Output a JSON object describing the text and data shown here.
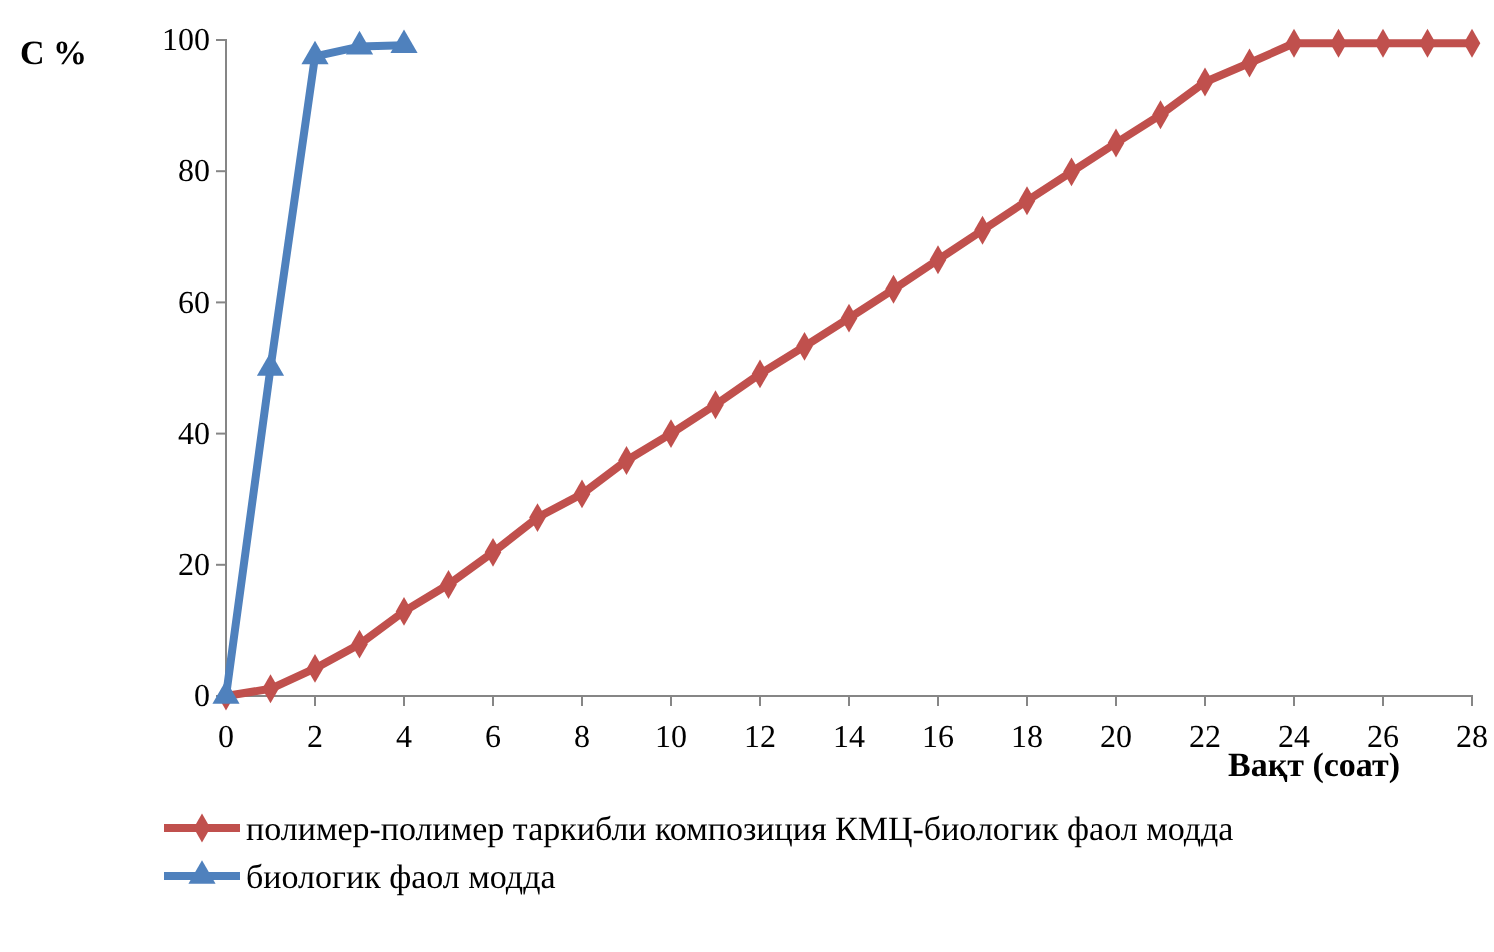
{
  "chart_data": {
    "type": "line",
    "ylabel": "С %",
    "xlabel": "Вақт (соат)",
    "xlim": [
      0,
      28
    ],
    "xticks": [
      0,
      2,
      4,
      6,
      8,
      10,
      12,
      14,
      16,
      18,
      20,
      22,
      24,
      26,
      28
    ],
    "ylim": [
      0,
      100
    ],
    "yticks": [
      0,
      20,
      40,
      60,
      80,
      100
    ],
    "grid": false,
    "legend": "bottom",
    "series": [
      {
        "name": "полимер-полимер таркибли композиция КМЦ-биологик фаол модда",
        "color": "#c0504d",
        "marker": "diamond",
        "x": [
          0,
          1,
          2,
          3,
          4,
          5,
          6,
          7,
          8,
          9,
          10,
          11,
          12,
          13,
          14,
          15,
          16,
          17,
          18,
          19,
          20,
          21,
          22,
          23,
          24,
          25,
          26,
          27,
          28
        ],
        "values": [
          0,
          1.1,
          4.2,
          7.9,
          12.9,
          17,
          21.9,
          27.2,
          30.8,
          35.9,
          40,
          44.4,
          49.1,
          53.3,
          57.6,
          62,
          66.5,
          71,
          75.5,
          79.9,
          84.3,
          88.6,
          93.6,
          96.5,
          99.5,
          99.5,
          99.5,
          99.5,
          99.5
        ]
      },
      {
        "name": "биологик фаол модда",
        "color": "#4f81bd",
        "marker": "triangle",
        "x": [
          0,
          1,
          2,
          3,
          4
        ],
        "values": [
          0,
          50,
          97.5,
          99,
          99.2
        ]
      }
    ]
  }
}
